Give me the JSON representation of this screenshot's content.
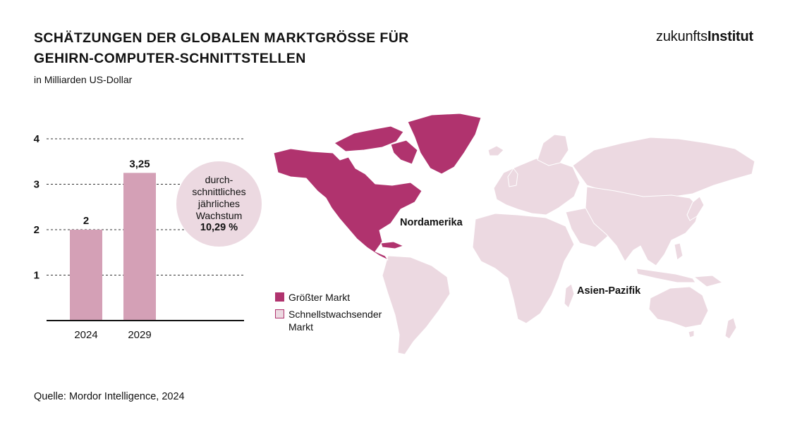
{
  "header": {
    "title": "Schätzungen der globalen Marktgröße für Gehirn-Computer-Schnittstellen",
    "subtitle": "in Milliarden US-Dollar",
    "logo_light": "zukunfts",
    "logo_bold": "Institut"
  },
  "chart_data": {
    "type": "bar",
    "categories": [
      "2024",
      "2029"
    ],
    "values": [
      2,
      3.25
    ],
    "data_labels": [
      "2",
      "3,25"
    ],
    "title": "Schätzungen der globalen Marktgröße für Gehirn-Computer-Schnittstellen",
    "ylabel": "",
    "xlabel": "",
    "ylim": [
      0,
      4
    ],
    "yticks": [
      1,
      2,
      3,
      4
    ],
    "grid": "dashed horizontal",
    "bar_color": "#d4a0b6"
  },
  "growth_badge": {
    "line1": "durch-",
    "line2": "schnittliches",
    "line3": "jährliches",
    "line4": "Wachstum",
    "rate": "10,29 %"
  },
  "map": {
    "regions": [
      {
        "name": "Nordamerika",
        "category": "largest"
      },
      {
        "name": "Asien-Pazifik",
        "category": "fastest"
      }
    ],
    "colors": {
      "largest": "#b0336e",
      "fastest": "#ecd9e1",
      "other": "#ecd9e1",
      "borders": "#ffffff"
    }
  },
  "legend": {
    "largest": "Größter Markt",
    "fastest": "Schnellstwachsender Markt"
  },
  "footer": {
    "source": "Quelle: Mordor Intelligence, 2024"
  }
}
